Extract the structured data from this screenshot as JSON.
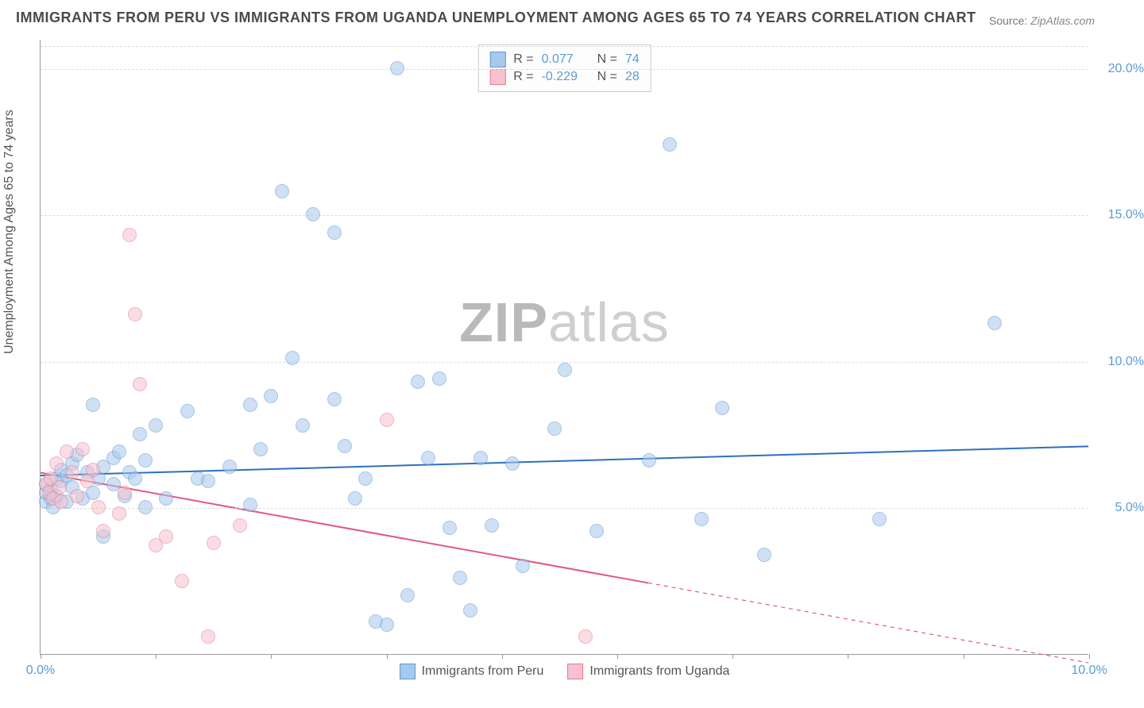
{
  "title": "IMMIGRANTS FROM PERU VS IMMIGRANTS FROM UGANDA UNEMPLOYMENT AMONG AGES 65 TO 74 YEARS CORRELATION CHART",
  "source_label": "Source:",
  "source_value": "ZipAtlas.com",
  "watermark_zip": "ZIP",
  "watermark_atlas": "atlas",
  "chart": {
    "type": "scatter",
    "ylabel": "Unemployment Among Ages 65 to 74 years",
    "background_color": "#ffffff",
    "grid_color": "#dcdcdc",
    "axis_color": "#999999",
    "xlim": [
      0,
      10
    ],
    "ylim": [
      0,
      21
    ],
    "xtick_positions": [
      0,
      1.1,
      2.2,
      3.3,
      4.4,
      5.5,
      6.6,
      7.7,
      8.8,
      10
    ],
    "xtick_labels_shown": {
      "0": "0.0%",
      "10": "10.0%"
    },
    "xtick_label0_color": "#5b9bd5",
    "xtick_label10_color": "#5b9bd5",
    "ytick_positions": [
      5,
      10,
      15,
      20
    ],
    "ytick_labels": {
      "5": "5.0%",
      "10": "10.0%",
      "15": "15.0%",
      "20": "20.0%"
    },
    "ytick_color": "#5b9bd5",
    "marker_radius": 9,
    "marker_opacity": 0.55,
    "series": [
      {
        "name": "Immigrants from Peru",
        "color_fill": "#a8c8ec",
        "color_stroke": "#5b9bd5",
        "trend_color": "#2e6fc0",
        "trend_width": 2,
        "R_label": "R =",
        "R_value": "0.077",
        "N_label": "N =",
        "N_value": "74",
        "trend": {
          "x1": 0,
          "y1": 6.1,
          "x2": 10,
          "y2": 7.1,
          "dash_after_x": null
        },
        "points": [
          [
            0.05,
            5.2
          ],
          [
            0.05,
            5.5
          ],
          [
            0.05,
            5.8
          ],
          [
            0.1,
            5.3
          ],
          [
            0.1,
            5.6
          ],
          [
            0.12,
            5.0
          ],
          [
            0.15,
            6.0
          ],
          [
            0.15,
            5.4
          ],
          [
            0.2,
            5.9
          ],
          [
            0.2,
            6.3
          ],
          [
            0.25,
            5.2
          ],
          [
            0.25,
            6.1
          ],
          [
            0.3,
            6.5
          ],
          [
            0.3,
            5.7
          ],
          [
            0.35,
            6.8
          ],
          [
            0.4,
            5.3
          ],
          [
            0.45,
            6.2
          ],
          [
            0.5,
            5.5
          ],
          [
            0.5,
            8.5
          ],
          [
            0.55,
            6.0
          ],
          [
            0.6,
            6.4
          ],
          [
            0.6,
            4.0
          ],
          [
            0.7,
            5.8
          ],
          [
            0.7,
            6.7
          ],
          [
            0.75,
            6.9
          ],
          [
            0.8,
            5.4
          ],
          [
            0.85,
            6.2
          ],
          [
            0.9,
            6.0
          ],
          [
            0.95,
            7.5
          ],
          [
            1.0,
            6.6
          ],
          [
            1.0,
            5.0
          ],
          [
            1.1,
            7.8
          ],
          [
            1.2,
            5.3
          ],
          [
            1.4,
            8.3
          ],
          [
            1.5,
            6.0
          ],
          [
            1.6,
            5.9
          ],
          [
            1.8,
            6.4
          ],
          [
            2.0,
            8.5
          ],
          [
            2.0,
            5.1
          ],
          [
            2.1,
            7.0
          ],
          [
            2.2,
            8.8
          ],
          [
            2.3,
            15.8
          ],
          [
            2.4,
            10.1
          ],
          [
            2.5,
            7.8
          ],
          [
            2.6,
            15.0
          ],
          [
            2.8,
            14.4
          ],
          [
            2.8,
            8.7
          ],
          [
            2.9,
            7.1
          ],
          [
            3.0,
            5.3
          ],
          [
            3.1,
            6.0
          ],
          [
            3.2,
            1.1
          ],
          [
            3.3,
            1.0
          ],
          [
            3.4,
            20.0
          ],
          [
            3.5,
            2.0
          ],
          [
            3.6,
            9.3
          ],
          [
            3.7,
            6.7
          ],
          [
            3.8,
            9.4
          ],
          [
            3.9,
            4.3
          ],
          [
            4.0,
            2.6
          ],
          [
            4.1,
            1.5
          ],
          [
            4.2,
            6.7
          ],
          [
            4.3,
            4.4
          ],
          [
            4.5,
            6.5
          ],
          [
            4.6,
            3.0
          ],
          [
            4.9,
            7.7
          ],
          [
            5.0,
            9.7
          ],
          [
            5.3,
            4.2
          ],
          [
            5.8,
            6.6
          ],
          [
            6.0,
            17.4
          ],
          [
            6.3,
            4.6
          ],
          [
            6.5,
            8.4
          ],
          [
            6.9,
            3.4
          ],
          [
            8.0,
            4.6
          ],
          [
            9.1,
            11.3
          ]
        ]
      },
      {
        "name": "Immigrants from Uganda",
        "color_fill": "#f5c2cd",
        "color_stroke": "#e67a94",
        "trend_color": "#e05a7d",
        "trend_width": 2,
        "R_label": "R =",
        "R_value": "-0.229",
        "N_label": "N =",
        "N_value": "28",
        "trend": {
          "x1": 0,
          "y1": 6.2,
          "x2": 10,
          "y2": -0.3,
          "dash_after_x": 5.8
        },
        "points": [
          [
            0.05,
            5.8
          ],
          [
            0.08,
            5.5
          ],
          [
            0.1,
            6.0
          ],
          [
            0.12,
            5.3
          ],
          [
            0.15,
            6.5
          ],
          [
            0.18,
            5.7
          ],
          [
            0.2,
            5.2
          ],
          [
            0.25,
            6.9
          ],
          [
            0.3,
            6.2
          ],
          [
            0.35,
            5.4
          ],
          [
            0.4,
            7.0
          ],
          [
            0.45,
            5.9
          ],
          [
            0.5,
            6.3
          ],
          [
            0.55,
            5.0
          ],
          [
            0.6,
            4.2
          ],
          [
            0.75,
            4.8
          ],
          [
            0.8,
            5.5
          ],
          [
            0.85,
            14.3
          ],
          [
            0.9,
            11.6
          ],
          [
            0.95,
            9.2
          ],
          [
            1.1,
            3.7
          ],
          [
            1.2,
            4.0
          ],
          [
            1.35,
            2.5
          ],
          [
            1.6,
            0.6
          ],
          [
            1.65,
            3.8
          ],
          [
            1.9,
            4.4
          ],
          [
            3.3,
            8.0
          ],
          [
            5.2,
            0.6
          ]
        ]
      }
    ],
    "legend_top": {
      "border_color": "#cccccc",
      "label_color": "#555555",
      "value_color": "#5b9bd5"
    },
    "legend_bottom_color": "#555555"
  }
}
